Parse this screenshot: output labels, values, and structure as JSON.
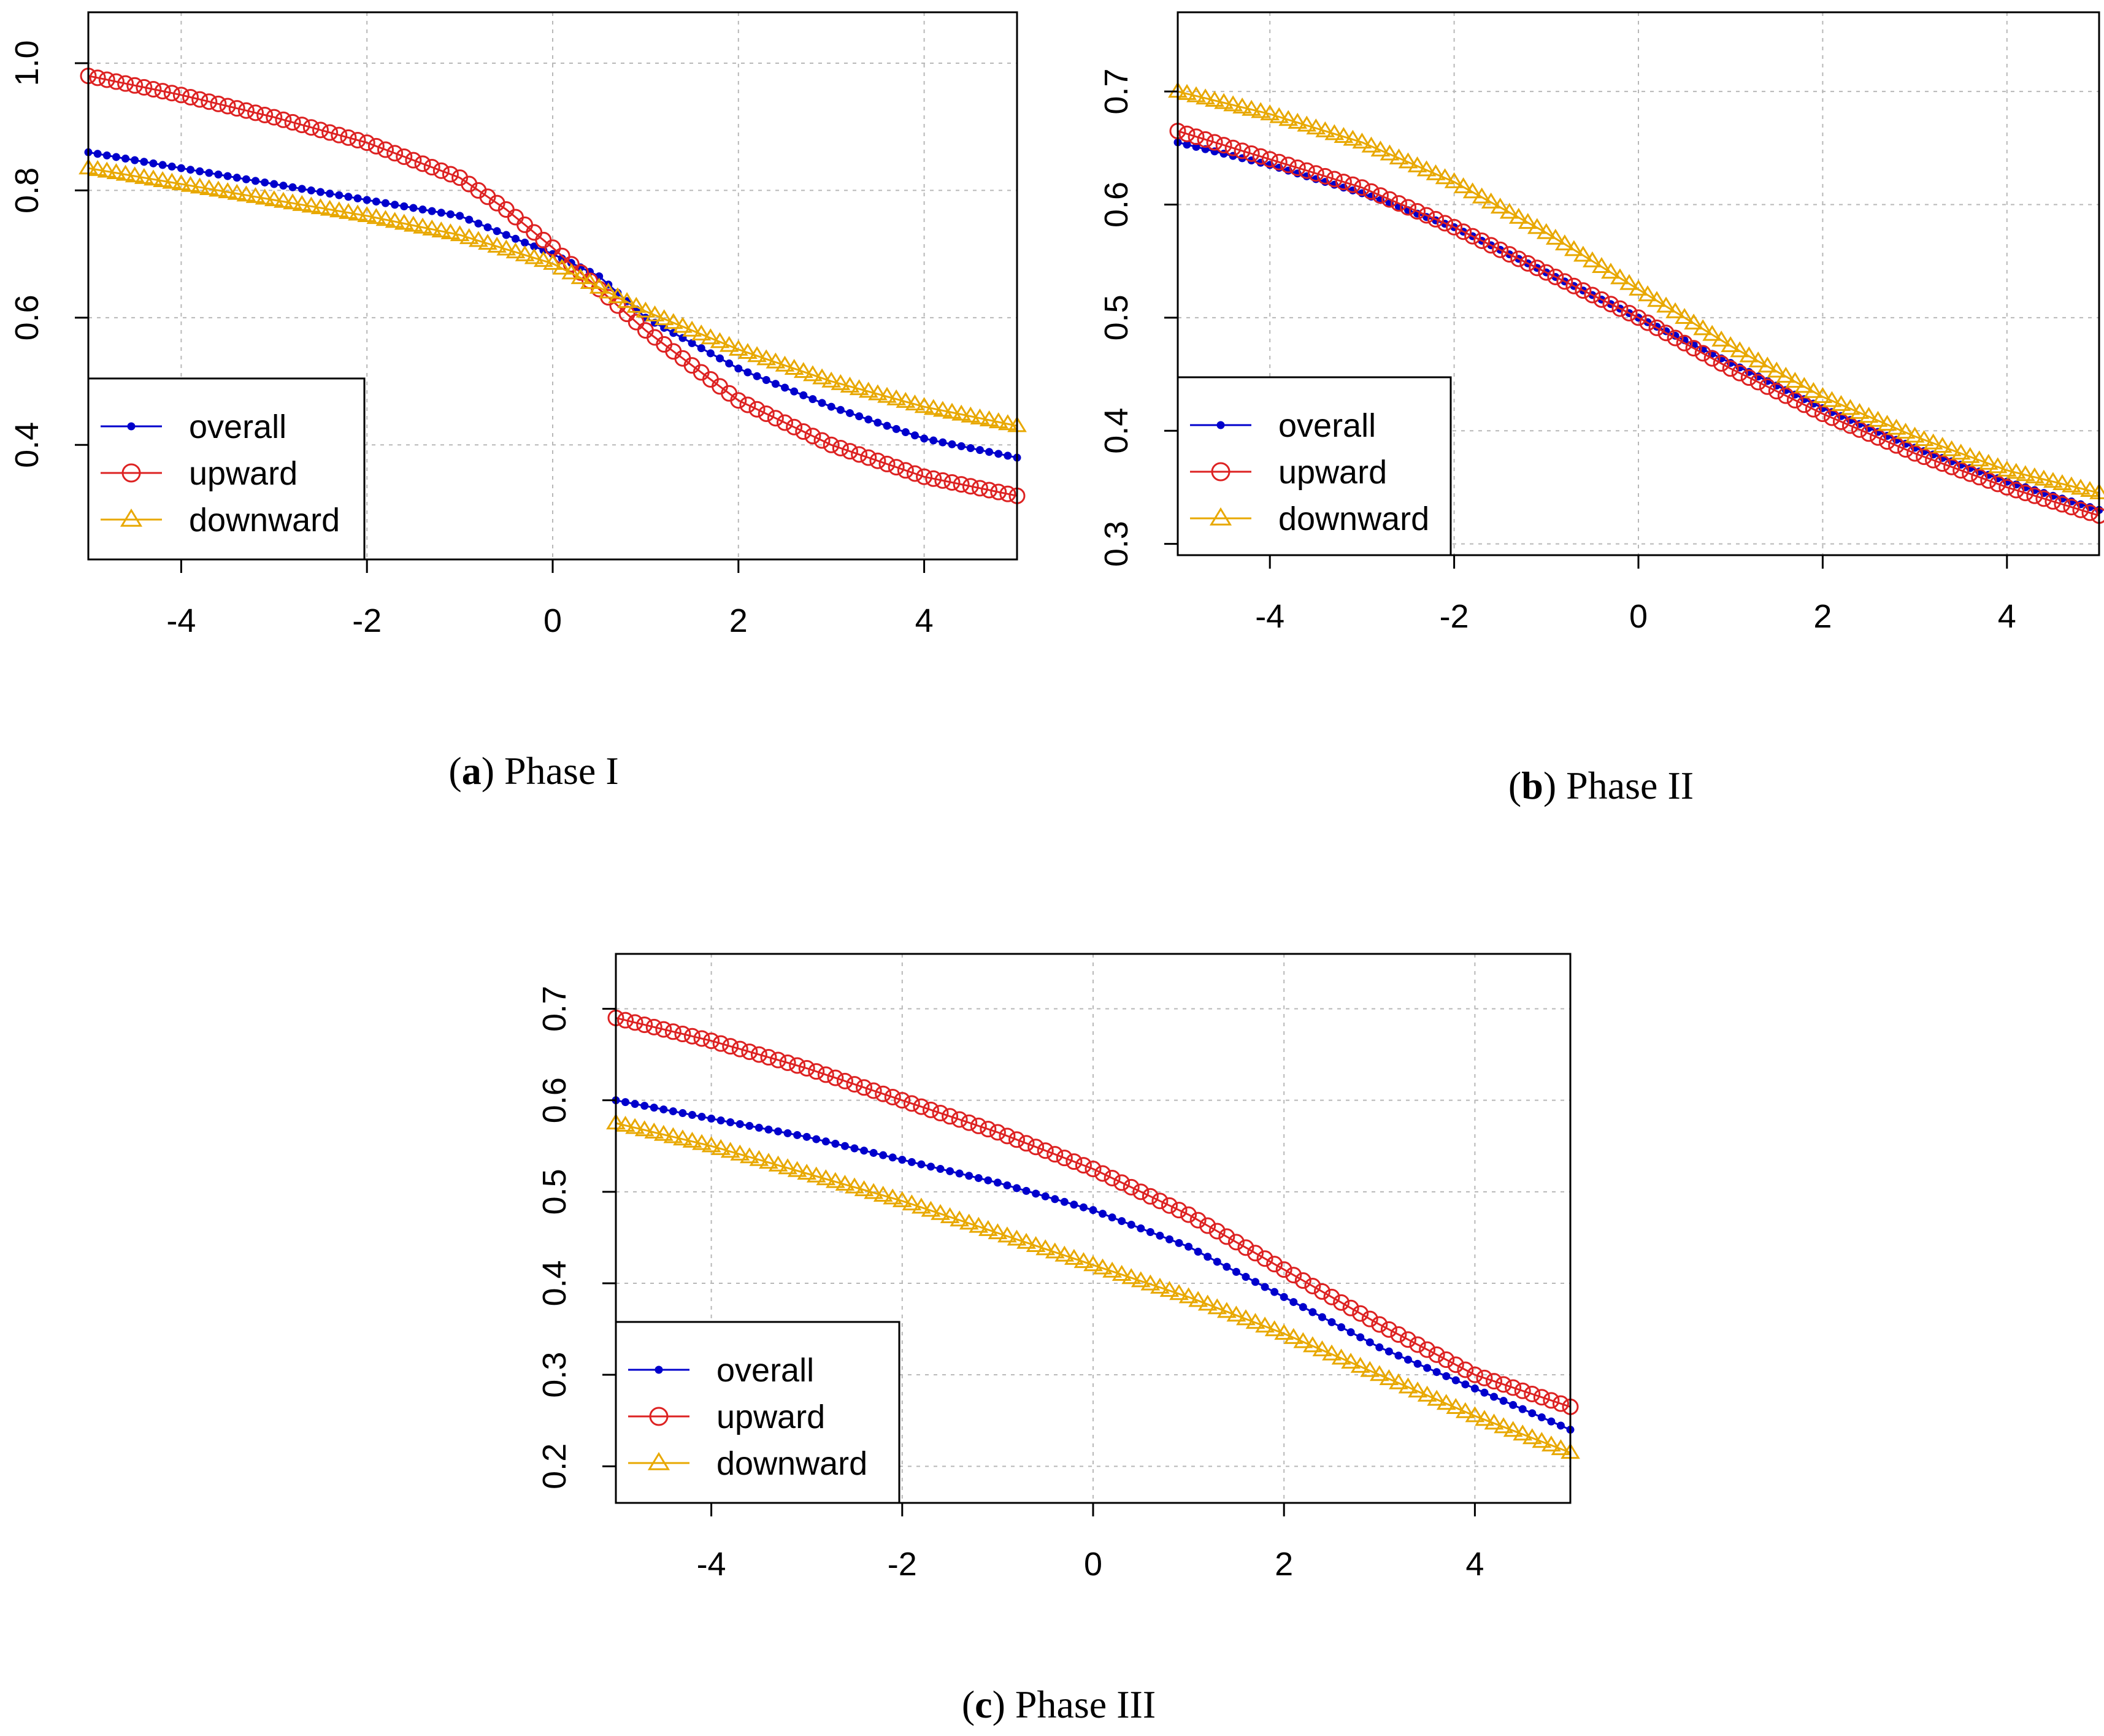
{
  "chart_data": [
    {
      "type": "line",
      "caption": {
        "letter": "a",
        "text": " Phase I"
      },
      "xlim": [
        -5,
        5
      ],
      "ylim": [
        0.22,
        1.08
      ],
      "x_ticks": [
        "-4",
        "-2",
        "0",
        "2",
        "4"
      ],
      "y_ticks": [
        "0.4",
        "0.6",
        "0.8",
        "1.0"
      ],
      "grid": true,
      "legend": "bottom-left",
      "series": [
        {
          "name": "overall",
          "marker": "dot",
          "color": "#0000cc",
          "x": [
            -5,
            -4,
            -3,
            -2,
            -1,
            0,
            0.5,
            1,
            2,
            3,
            4,
            5
          ],
          "y": [
            0.86,
            0.835,
            0.81,
            0.785,
            0.76,
            0.7,
            0.665,
            0.6,
            0.52,
            0.46,
            0.41,
            0.38
          ]
        },
        {
          "name": "upward",
          "marker": "circle",
          "color": "#dd2222",
          "x": [
            -5,
            -4,
            -3,
            -2,
            -1,
            -0.5,
            0,
            0.5,
            1,
            2,
            3,
            4,
            5
          ],
          "y": [
            0.98,
            0.95,
            0.915,
            0.875,
            0.82,
            0.77,
            0.71,
            0.645,
            0.58,
            0.47,
            0.4,
            0.35,
            0.32
          ]
        },
        {
          "name": "downward",
          "marker": "triangle",
          "color": "#e8a800",
          "x": [
            -5,
            -4,
            -3,
            -2,
            -1,
            0,
            1,
            2,
            3,
            4,
            5
          ],
          "y": [
            0.835,
            0.81,
            0.785,
            0.76,
            0.73,
            0.685,
            0.61,
            0.55,
            0.5,
            0.46,
            0.43
          ]
        }
      ]
    },
    {
      "type": "line",
      "caption": {
        "letter": "b",
        "text": " Phase II"
      },
      "xlim": [
        -5,
        5
      ],
      "ylim": [
        0.29,
        0.77
      ],
      "x_ticks": [
        "-4",
        "-2",
        "0",
        "2",
        "4"
      ],
      "y_ticks": [
        "0.3",
        "0.4",
        "0.5",
        "0.6",
        "0.7"
      ],
      "grid": true,
      "legend": "bottom-left",
      "series": [
        {
          "name": "overall",
          "marker": "dot",
          "color": "#0000cc",
          "x": [
            -5,
            -4,
            -3,
            -2,
            -1,
            0,
            1,
            2,
            3,
            4,
            5
          ],
          "y": [
            0.655,
            0.635,
            0.61,
            0.58,
            0.54,
            0.5,
            0.46,
            0.42,
            0.385,
            0.355,
            0.33
          ]
        },
        {
          "name": "upward",
          "marker": "circle",
          "color": "#dd2222",
          "x": [
            -5,
            -4,
            -3,
            -2,
            -1,
            0,
            1,
            2,
            3,
            4,
            5
          ],
          "y": [
            0.665,
            0.64,
            0.615,
            0.58,
            0.54,
            0.5,
            0.455,
            0.415,
            0.38,
            0.35,
            0.325
          ]
        },
        {
          "name": "downward",
          "marker": "triangle",
          "color": "#e8a800",
          "x": [
            -5,
            -4,
            -3,
            -2,
            -1,
            0,
            1,
            2,
            3,
            4,
            5
          ],
          "y": [
            0.7,
            0.68,
            0.655,
            0.62,
            0.575,
            0.525,
            0.475,
            0.43,
            0.395,
            0.365,
            0.345
          ]
        }
      ]
    },
    {
      "type": "line",
      "caption": {
        "letter": "c",
        "text": " Phase III"
      },
      "xlim": [
        -5,
        5
      ],
      "ylim": [
        0.16,
        0.76
      ],
      "x_ticks": [
        "-4",
        "-2",
        "0",
        "2",
        "4"
      ],
      "y_ticks": [
        "0.2",
        "0.3",
        "0.4",
        "0.5",
        "0.6",
        "0.7"
      ],
      "grid": true,
      "legend": "bottom-left",
      "series": [
        {
          "name": "overall",
          "marker": "dot",
          "color": "#0000cc",
          "x": [
            -5,
            -4,
            -3,
            -2,
            -1,
            0,
            1,
            2,
            3,
            4,
            5
          ],
          "y": [
            0.6,
            0.58,
            0.56,
            0.535,
            0.51,
            0.48,
            0.44,
            0.385,
            0.33,
            0.285,
            0.24
          ]
        },
        {
          "name": "upward",
          "marker": "circle",
          "color": "#dd2222",
          "x": [
            -5,
            -4,
            -3,
            -2,
            -1,
            0,
            1,
            2,
            3,
            4,
            5
          ],
          "y": [
            0.69,
            0.665,
            0.635,
            0.6,
            0.565,
            0.525,
            0.475,
            0.415,
            0.355,
            0.3,
            0.265
          ]
        },
        {
          "name": "downward",
          "marker": "triangle",
          "color": "#e8a800",
          "x": [
            -5,
            -4,
            -3,
            -2,
            -1,
            0,
            1,
            2,
            3,
            4,
            5
          ],
          "y": [
            0.575,
            0.55,
            0.52,
            0.49,
            0.455,
            0.42,
            0.385,
            0.345,
            0.3,
            0.255,
            0.215
          ]
        }
      ]
    }
  ]
}
